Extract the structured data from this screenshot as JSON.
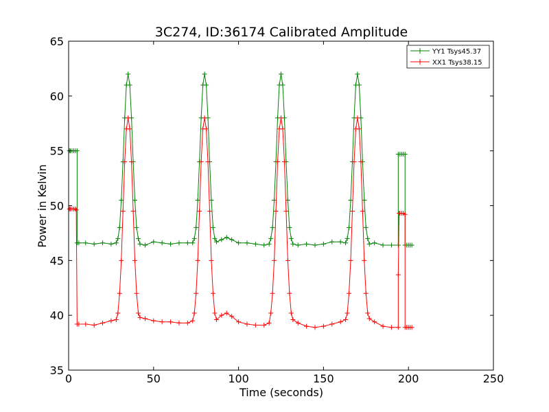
{
  "chart_data": {
    "type": "line",
    "title": "3C274, ID:36174 Calibrated Amplitude",
    "xlabel": "Time (seconds)",
    "ylabel": "Power in Kelvin",
    "xlim": [
      0,
      250
    ],
    "ylim": [
      35,
      65
    ],
    "xticks": [
      0,
      50,
      100,
      150,
      200,
      250
    ],
    "yticks": [
      35,
      40,
      45,
      50,
      55,
      60,
      65
    ],
    "grid": false,
    "legend_position": "top-right",
    "marker": "plus",
    "series": [
      {
        "name": "YY1 Tsys45.37",
        "color": "#008000",
        "points": [
          [
            0.5,
            55.0
          ],
          [
            1,
            55.0
          ],
          [
            2,
            55.0
          ],
          [
            3,
            55.0
          ],
          [
            4,
            55.0
          ],
          [
            5,
            55.0
          ],
          [
            5,
            46.6
          ],
          [
            6,
            46.6
          ],
          [
            10,
            46.6
          ],
          [
            15,
            46.5
          ],
          [
            20,
            46.6
          ],
          [
            25,
            46.5
          ],
          [
            28,
            46.6
          ],
          [
            29,
            47.0
          ],
          [
            30,
            48.0
          ],
          [
            31,
            50.5
          ],
          [
            32,
            54.0
          ],
          [
            33,
            58.0
          ],
          [
            34,
            61.0
          ],
          [
            35,
            62.0
          ],
          [
            36,
            61.0
          ],
          [
            37,
            58.0
          ],
          [
            38,
            54.0
          ],
          [
            39,
            50.5
          ],
          [
            40,
            48.0
          ],
          [
            41,
            47.0
          ],
          [
            42,
            46.5
          ],
          [
            45,
            46.4
          ],
          [
            50,
            46.7
          ],
          [
            55,
            46.6
          ],
          [
            60,
            46.5
          ],
          [
            65,
            46.6
          ],
          [
            70,
            46.6
          ],
          [
            73,
            46.6
          ],
          [
            74,
            47.0
          ],
          [
            75,
            48.0
          ],
          [
            76,
            50.5
          ],
          [
            77,
            54.0
          ],
          [
            78,
            58.0
          ],
          [
            79,
            61.0
          ],
          [
            80,
            62.0
          ],
          [
            81,
            61.0
          ],
          [
            82,
            58.0
          ],
          [
            83,
            54.0
          ],
          [
            84,
            50.5
          ],
          [
            85,
            48.0
          ],
          [
            86,
            47.0
          ],
          [
            87,
            46.7
          ],
          [
            90,
            46.9
          ],
          [
            93,
            47.1
          ],
          [
            96,
            46.9
          ],
          [
            100,
            46.6
          ],
          [
            105,
            46.6
          ],
          [
            110,
            46.5
          ],
          [
            115,
            46.4
          ],
          [
            118,
            46.5
          ],
          [
            119,
            47.0
          ],
          [
            120,
            48.0
          ],
          [
            121,
            50.5
          ],
          [
            122,
            54.0
          ],
          [
            123,
            58.0
          ],
          [
            124,
            61.0
          ],
          [
            125,
            62.0
          ],
          [
            126,
            61.0
          ],
          [
            127,
            58.0
          ],
          [
            128,
            54.0
          ],
          [
            129,
            50.5
          ],
          [
            130,
            48.0
          ],
          [
            131,
            47.0
          ],
          [
            132,
            46.5
          ],
          [
            135,
            46.4
          ],
          [
            140,
            46.5
          ],
          [
            145,
            46.4
          ],
          [
            150,
            46.5
          ],
          [
            155,
            46.7
          ],
          [
            160,
            46.7
          ],
          [
            163,
            46.6
          ],
          [
            164,
            47.0
          ],
          [
            165,
            48.0
          ],
          [
            166,
            50.5
          ],
          [
            167,
            54.0
          ],
          [
            168,
            58.0
          ],
          [
            169,
            61.0
          ],
          [
            170,
            62.0
          ],
          [
            171,
            61.0
          ],
          [
            172,
            58.0
          ],
          [
            173,
            54.0
          ],
          [
            174,
            50.5
          ],
          [
            175,
            48.0
          ],
          [
            176,
            47.0
          ],
          [
            177,
            46.5
          ],
          [
            180,
            46.6
          ],
          [
            185,
            46.4
          ],
          [
            190,
            46.4
          ],
          [
            194,
            46.4
          ],
          [
            194,
            54.7
          ],
          [
            195,
            54.7
          ],
          [
            196,
            54.7
          ],
          [
            197,
            54.7
          ],
          [
            198,
            54.7
          ],
          [
            198,
            46.4
          ],
          [
            199,
            46.4
          ],
          [
            200,
            46.4
          ],
          [
            201,
            46.4
          ],
          [
            202,
            46.4
          ]
        ]
      },
      {
        "name": "XX1 Tsys38.15",
        "color": "#ff0000",
        "points": [
          [
            0.5,
            49.7
          ],
          [
            1,
            49.7
          ],
          [
            2,
            49.7
          ],
          [
            3,
            49.7
          ],
          [
            4,
            49.7
          ],
          [
            4.5,
            49.6
          ],
          [
            5,
            39.2
          ],
          [
            6,
            39.2
          ],
          [
            10,
            39.2
          ],
          [
            15,
            39.1
          ],
          [
            20,
            39.3
          ],
          [
            25,
            39.5
          ],
          [
            28,
            39.6
          ],
          [
            29,
            40.2
          ],
          [
            30,
            42.0
          ],
          [
            31,
            45.0
          ],
          [
            32,
            49.5
          ],
          [
            33,
            54.0
          ],
          [
            34,
            57.0
          ],
          [
            35,
            58.0
          ],
          [
            36,
            57.0
          ],
          [
            37,
            54.0
          ],
          [
            38,
            49.5
          ],
          [
            39,
            45.0
          ],
          [
            40,
            42.0
          ],
          [
            41,
            40.2
          ],
          [
            42,
            39.8
          ],
          [
            45,
            39.7
          ],
          [
            50,
            39.5
          ],
          [
            55,
            39.4
          ],
          [
            60,
            39.4
          ],
          [
            65,
            39.3
          ],
          [
            70,
            39.3
          ],
          [
            73,
            39.5
          ],
          [
            74,
            40.2
          ],
          [
            75,
            42.0
          ],
          [
            76,
            45.0
          ],
          [
            77,
            49.5
          ],
          [
            78,
            54.0
          ],
          [
            79,
            57.0
          ],
          [
            80,
            58.0
          ],
          [
            81,
            57.0
          ],
          [
            82,
            54.0
          ],
          [
            83,
            49.5
          ],
          [
            84,
            45.0
          ],
          [
            85,
            42.0
          ],
          [
            86,
            40.2
          ],
          [
            87,
            39.6
          ],
          [
            90,
            40.0
          ],
          [
            93,
            40.2
          ],
          [
            96,
            39.9
          ],
          [
            100,
            39.4
          ],
          [
            105,
            39.2
          ],
          [
            110,
            39.1
          ],
          [
            115,
            39.1
          ],
          [
            118,
            39.3
          ],
          [
            119,
            40.2
          ],
          [
            120,
            42.0
          ],
          [
            121,
            45.0
          ],
          [
            122,
            49.5
          ],
          [
            123,
            54.0
          ],
          [
            124,
            57.0
          ],
          [
            125,
            58.0
          ],
          [
            126,
            57.0
          ],
          [
            127,
            54.0
          ],
          [
            128,
            49.5
          ],
          [
            129,
            45.0
          ],
          [
            130,
            42.0
          ],
          [
            131,
            40.2
          ],
          [
            132,
            39.6
          ],
          [
            135,
            39.3
          ],
          [
            140,
            39.0
          ],
          [
            145,
            38.9
          ],
          [
            150,
            39.0
          ],
          [
            155,
            39.2
          ],
          [
            160,
            39.4
          ],
          [
            163,
            39.6
          ],
          [
            164,
            40.2
          ],
          [
            165,
            42.0
          ],
          [
            166,
            45.0
          ],
          [
            167,
            49.5
          ],
          [
            168,
            54.0
          ],
          [
            169,
            57.0
          ],
          [
            170,
            58.0
          ],
          [
            171,
            57.0
          ],
          [
            172,
            54.0
          ],
          [
            173,
            49.5
          ],
          [
            174,
            45.0
          ],
          [
            175,
            42.0
          ],
          [
            176,
            40.2
          ],
          [
            177,
            39.7
          ],
          [
            180,
            39.4
          ],
          [
            185,
            39.0
          ],
          [
            190,
            38.9
          ],
          [
            194,
            38.9
          ],
          [
            194,
            43.7
          ],
          [
            194.5,
            49.3
          ],
          [
            195,
            49.3
          ],
          [
            196,
            49.3
          ],
          [
            197,
            49.3
          ],
          [
            198,
            49.2
          ],
          [
            198,
            38.9
          ],
          [
            199,
            38.9
          ],
          [
            200,
            38.9
          ],
          [
            201,
            38.9
          ],
          [
            202,
            38.9
          ]
        ]
      }
    ]
  }
}
